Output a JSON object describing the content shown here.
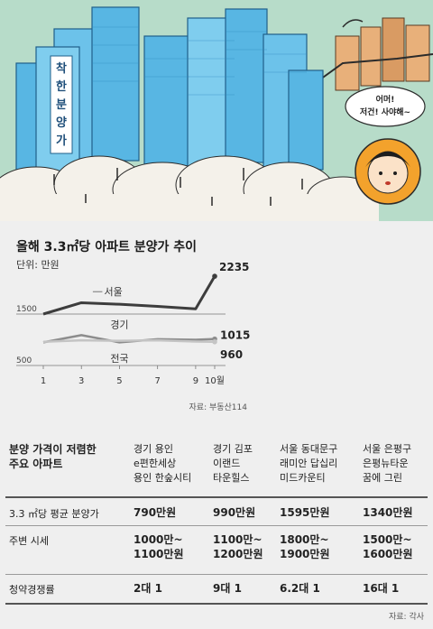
{
  "illustration": {
    "building_sign": "착한분양가",
    "speech_bubble": "어머! 저건! 사야해~",
    "colors": {
      "sky": "#b7dcc9",
      "building": "#58b6e3",
      "building_dark": "#2f86bf",
      "cloud": "#f4f1ea",
      "brick": "#e8b07a",
      "face_bg": "#f3a22c"
    }
  },
  "chart_data": {
    "type": "line",
    "title": "올해 3.3㎡당 아파트 분양가 추이",
    "unit": "단위: 만원",
    "x": [
      1,
      3,
      5,
      7,
      9,
      10
    ],
    "x_tick_labels": [
      "1",
      "3",
      "5",
      "7",
      "9",
      "10월"
    ],
    "y_tick_labels": [
      "1500",
      "500"
    ],
    "ylim": [
      500,
      2300
    ],
    "series": [
      {
        "name": "서울",
        "values": [
          1500,
          1720,
          1690,
          1650,
          1600,
          2235
        ],
        "end_label": "2235",
        "color": "#3d3d3d"
      },
      {
        "name": "경기",
        "values": [
          950,
          1090,
          950,
          1010,
          1000,
          1015
        ],
        "end_label": "1015",
        "color": "#8d8d8d"
      },
      {
        "name": "전국",
        "values": [
          960,
          990,
          980,
          990,
          965,
          960
        ],
        "end_label": "960",
        "color": "#c4c4c4"
      }
    ],
    "source": "자료: 부동산114"
  },
  "table": {
    "header_title": [
      "분양 가격이 저렴한",
      "주요 아파트"
    ],
    "columns": [
      [
        "경기 용인",
        "e편한세상",
        "용인 한숲시티"
      ],
      [
        "경기 김포",
        "이랜드",
        "타운힐스"
      ],
      [
        "서울 동대문구",
        "래미안 답십리",
        "미드카운티"
      ],
      [
        "서울 은평구",
        "은평뉴타운",
        "꿈에 그린"
      ]
    ],
    "rows": [
      {
        "label": "3.3 ㎡당 평균 분양가",
        "cells": [
          [
            "790만원"
          ],
          [
            "990만원"
          ],
          [
            "1595만원"
          ],
          [
            "1340만원"
          ]
        ]
      },
      {
        "label": "주변 시세",
        "cells": [
          [
            "1000만~",
            "1100만원"
          ],
          [
            "1100만~",
            "1200만원"
          ],
          [
            "1800만~",
            "1900만원"
          ],
          [
            "1500만~",
            "1600만원"
          ]
        ]
      },
      {
        "label": "청약경쟁률",
        "cells": [
          [
            "2대 1"
          ],
          [
            "9대 1"
          ],
          [
            "6.2대 1"
          ],
          [
            "16대 1"
          ]
        ]
      }
    ],
    "source": "자료: 각사"
  }
}
